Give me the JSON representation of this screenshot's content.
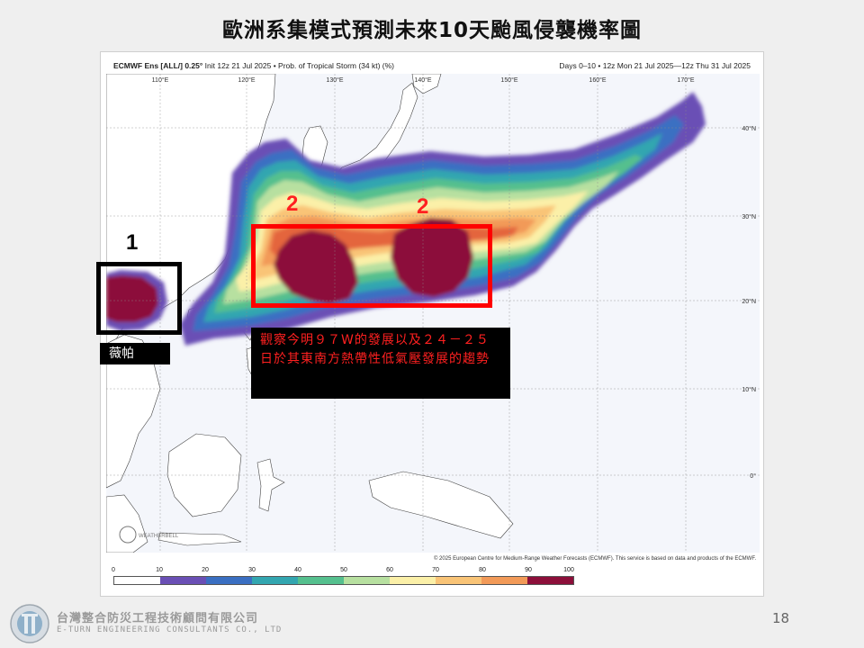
{
  "slide": {
    "title": "歐洲系集模式預測未來10天颱風侵襲機率圖",
    "page_number": "18"
  },
  "map": {
    "header_model": "ECMWF Ens [ALL/] 0.25°",
    "header_init": "Init 12z 21 Jul 2025 • Prob. of Tropical Storm (34 kt) (%)",
    "header_days": "Days 0–10 • 12z Mon 21 Jul 2025—12z Thu 31 Jul 2025",
    "copyright": "© 2025 European Centre for Medium-Range Weather Forecasts (ECMWF). This service is based on data and products of the ECMWF.",
    "watermark": "WEATHERBELL",
    "lon_labels": [
      "110°E",
      "120°E",
      "130°E",
      "140°E",
      "150°E",
      "160°E",
      "170°E"
    ],
    "lat_labels": [
      "40°N",
      "30°N",
      "20°N",
      "10°N",
      "0°"
    ],
    "colorbar_ticks": [
      "0",
      "10",
      "20",
      "30",
      "40",
      "50",
      "60",
      "70",
      "80",
      "90",
      "100"
    ],
    "colorbar_colors": [
      "#ffffff",
      "#6a4fb5",
      "#3a6fc2",
      "#33a6b0",
      "#55c08e",
      "#b7e0a0",
      "#fbf0a8",
      "#f9c477",
      "#f29a58",
      "#e4653e",
      "#8c0f3a"
    ]
  },
  "annotations": {
    "marker_1": "1",
    "marker_2a": "2",
    "marker_2b": "2",
    "storm_name": "薇帕",
    "description": "觀察今明９７W的發展以及２４－２５日於其東南方熱帶性低氣壓發展的趨勢"
  },
  "footer": {
    "company_cn": "台灣整合防災工程技術顧問有限公司",
    "company_en": "E-TURN ENGINEERING CONSULTANTS CO., LTD"
  }
}
